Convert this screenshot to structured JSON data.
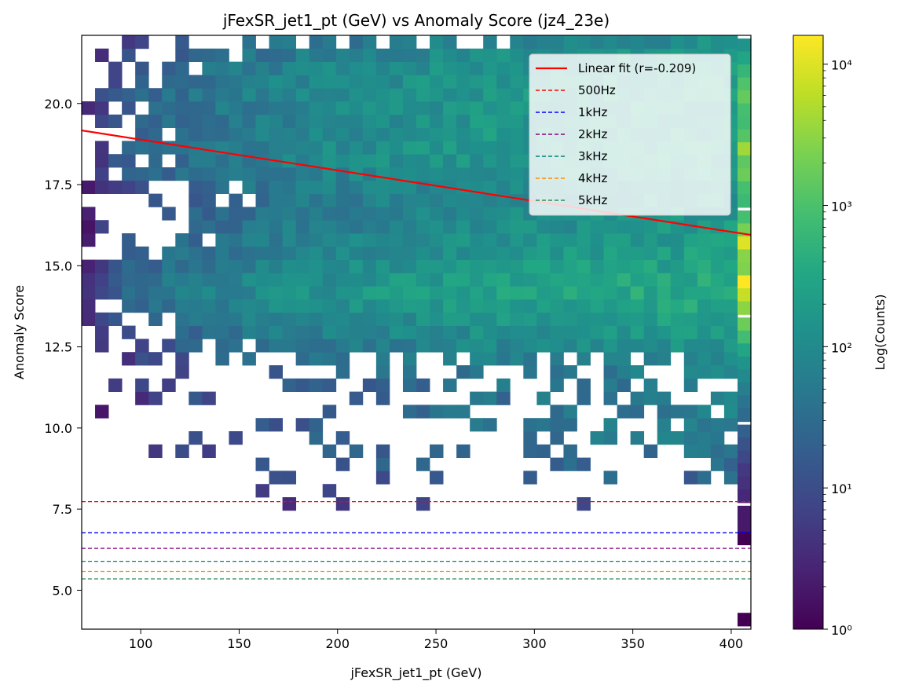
{
  "chart_data": {
    "type": "heatmap",
    "title": "jFexSR_jet1_pt (GeV) vs Anomaly Score (jz4_23e)",
    "xlabel": "jFexSR_jet1_pt (GeV)",
    "ylabel": "Anomaly Score",
    "xlim": [
      70,
      410
    ],
    "ylim": [
      3.8,
      22.1
    ],
    "x_bins": 50,
    "y_bins": 45,
    "x_ticks": [
      100,
      150,
      200,
      250,
      300,
      350,
      400
    ],
    "x_tick_labels": [
      "100",
      "150",
      "200",
      "250",
      "300",
      "350",
      "400"
    ],
    "y_ticks": [
      5.0,
      7.5,
      10.0,
      12.5,
      15.0,
      17.5,
      20.0
    ],
    "y_tick_labels": [
      "5.0",
      "7.5",
      "10.0",
      "12.5",
      "15.0",
      "17.5",
      "20.0"
    ],
    "colorscale": "viridis",
    "color_scale": "log",
    "colorbar": {
      "label": "Log(Counts)",
      "min": 1,
      "max": 16000,
      "ticks": [
        1,
        10,
        100,
        1000,
        10000
      ],
      "tick_labels": [
        "10⁰",
        "10¹",
        "10²",
        "10³",
        "10⁴"
      ]
    },
    "density": {
      "score_bands": [
        {
          "y": 21.5,
          "weight": 0.45,
          "width": 0.6
        },
        {
          "y": 20.5,
          "weight": 0.75,
          "width": 0.6
        },
        {
          "y": 19.5,
          "weight": 0.55,
          "width": 0.6
        },
        {
          "y": 18.6,
          "weight": 0.7,
          "width": 0.5
        },
        {
          "y": 17.8,
          "weight": 0.45,
          "width": 0.5
        },
        {
          "y": 16.5,
          "weight": 0.5,
          "width": 0.7
        },
        {
          "y": 15.0,
          "weight": 0.8,
          "width": 0.7
        },
        {
          "y": 14.1,
          "weight": 0.95,
          "width": 0.5
        },
        {
          "y": 13.0,
          "weight": 0.55,
          "width": 0.6
        },
        {
          "y": 11.0,
          "weight": 0.18,
          "width": 1.2
        },
        {
          "y": 9.5,
          "weight": 0.1,
          "width": 1.0
        }
      ],
      "overflow_column": [
        {
          "y": 21.8,
          "counts": 150
        },
        {
          "y": 21.4,
          "counts": 300
        },
        {
          "y": 21.0,
          "counts": 600
        },
        {
          "y": 20.6,
          "counts": 1100
        },
        {
          "y": 20.2,
          "counts": 1600
        },
        {
          "y": 19.8,
          "counts": 900
        },
        {
          "y": 19.4,
          "counts": 800
        },
        {
          "y": 19.0,
          "counts": 1200
        },
        {
          "y": 18.6,
          "counts": 4000
        },
        {
          "y": 18.2,
          "counts": 1400
        },
        {
          "y": 17.8,
          "counts": 1800
        },
        {
          "y": 17.4,
          "counts": 900
        },
        {
          "y": 17.0,
          "counts": 700
        },
        {
          "y": 16.5,
          "counts": 900
        },
        {
          "y": 16.1,
          "counts": 2200
        },
        {
          "y": 15.7,
          "counts": 10000
        },
        {
          "y": 15.3,
          "counts": 2800
        },
        {
          "y": 14.9,
          "counts": 2500
        },
        {
          "y": 14.5,
          "counts": 16000
        },
        {
          "y": 14.1,
          "counts": 7000
        },
        {
          "y": 13.7,
          "counts": 3000
        },
        {
          "y": 13.2,
          "counts": 1800
        },
        {
          "y": 12.8,
          "counts": 800
        },
        {
          "y": 12.4,
          "counts": 300
        },
        {
          "y": 12.0,
          "counts": 150
        },
        {
          "y": 11.6,
          "counts": 100
        },
        {
          "y": 11.2,
          "counts": 60
        },
        {
          "y": 10.8,
          "counts": 40
        },
        {
          "y": 10.4,
          "counts": 30
        },
        {
          "y": 9.9,
          "counts": 20
        },
        {
          "y": 9.5,
          "counts": 12
        },
        {
          "y": 9.1,
          "counts": 8
        },
        {
          "y": 8.7,
          "counts": 5
        },
        {
          "y": 8.3,
          "counts": 4
        },
        {
          "y": 7.9,
          "counts": 3
        },
        {
          "y": 7.4,
          "counts": 2
        },
        {
          "y": 7.0,
          "counts": 2
        },
        {
          "y": 6.6,
          "counts": 1
        },
        {
          "y": 4.1,
          "counts": 1
        }
      ]
    },
    "fit_line": {
      "label": "Linear fit (r=-0.209)",
      "color": "#ff0000",
      "x": [
        70,
        410
      ],
      "y": [
        19.17,
        15.95
      ]
    },
    "thresholds": [
      {
        "label": "500Hz",
        "y": 7.73,
        "color": "#ff0000"
      },
      {
        "label": "1kHz",
        "y": 6.77,
        "color": "#0000ff"
      },
      {
        "label": "2kHz",
        "y": 6.29,
        "color": "#800080"
      },
      {
        "label": "3kHz",
        "y": 5.89,
        "color": "#008080"
      },
      {
        "label": "4kHz",
        "y": 5.58,
        "color": "#ff8c00"
      },
      {
        "label": "5kHz",
        "y": 5.35,
        "color": "#2e8b57"
      }
    ],
    "legend_position": "upper-right",
    "grid": false
  }
}
